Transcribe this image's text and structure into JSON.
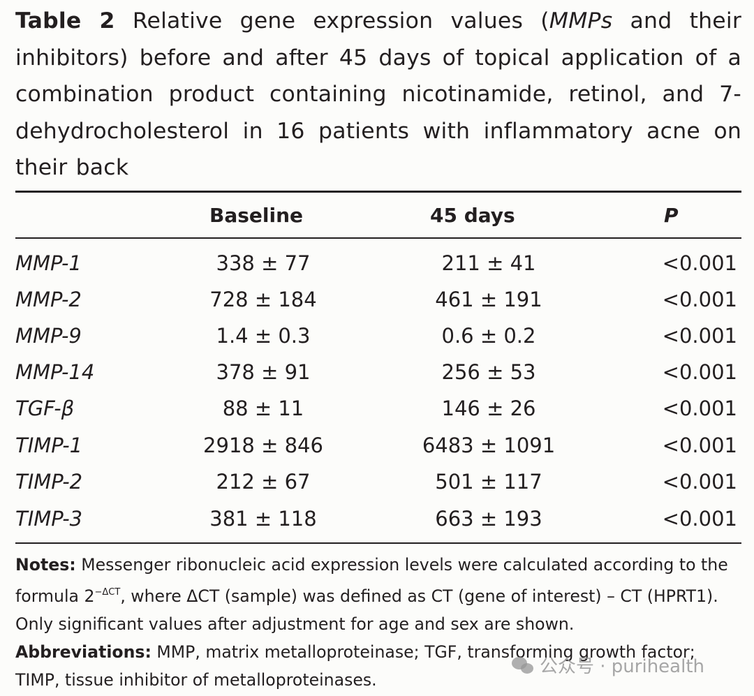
{
  "caption": {
    "label": "Table 2",
    "text_part1": " Relative gene expression values (",
    "italic": "MMPs",
    "text_part2": " and their inhibitors) before and after 45 days of topical application of a combination product containing nicotinamide, retinol, and 7-dehydrocholesterol in 16 patients with inflammatory acne on their back"
  },
  "table": {
    "headers": [
      "",
      "Baseline",
      "45 days",
      "P"
    ],
    "rows": [
      {
        "gene": "MMP-1",
        "baseline": "338 ± 77",
        "days45": "211 ± 41",
        "p": "<0.001"
      },
      {
        "gene": "MMP-2",
        "baseline": "728 ± 184",
        "days45": "461 ± 191",
        "p": "<0.001"
      },
      {
        "gene": "MMP-9",
        "baseline": "1.4 ± 0.3",
        "days45": "0.6 ± 0.2",
        "p": "<0.001"
      },
      {
        "gene": "MMP-14",
        "baseline": "378 ± 91",
        "days45": "256 ± 53",
        "p": "<0.001"
      },
      {
        "gene": "TGF-β",
        "baseline": "88 ± 11",
        "days45": "146 ± 26",
        "p": "<0.001"
      },
      {
        "gene": "TIMP-1",
        "baseline": "2918 ± 846",
        "days45": "6483 ± 1091",
        "p": "<0.001"
      },
      {
        "gene": "TIMP-2",
        "baseline": "212 ± 67",
        "days45": "501 ± 117",
        "p": "<0.001"
      },
      {
        "gene": "TIMP-3",
        "baseline": "381 ± 118",
        "days45": "663 ± 193",
        "p": "<0.001"
      }
    ]
  },
  "notes": {
    "notes_label": "Notes:",
    "notes_text1": " Messenger ribonucleic acid expression levels were calculated according to the formula 2",
    "notes_sup": "−ΔCT",
    "notes_text2": ", where ΔCT (sample) was defined as CT (gene of interest) – CT (HPRT1). Only significant values after adjustment for age and sex are shown.",
    "abbr_label": "Abbreviations:",
    "abbr_text": " MMP, matrix metalloproteinase; TGF, transforming growth factor; TIMP, tissue inhibitor of metalloproteinases."
  },
  "watermark": {
    "icon": "wechat-icon",
    "text": "公众号 · purihealth"
  }
}
